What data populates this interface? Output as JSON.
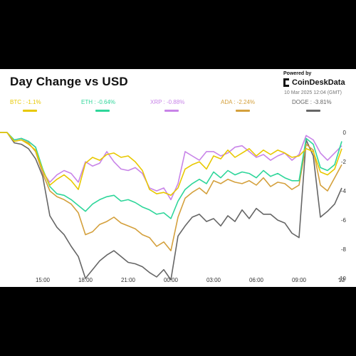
{
  "header": {
    "title": "Day Change vs USD",
    "powered_by": "Powered by",
    "brand": "CoinDeskData",
    "timestamp": "10 Mar 2025 12:04 (GMT)"
  },
  "legend": [
    {
      "label": "BTC : -1.1%",
      "color": "#e8c800"
    },
    {
      "label": "ETH : -0.64%",
      "color": "#2ed69a"
    },
    {
      "label": "XRP : -0.88%",
      "color": "#c884e8"
    },
    {
      "label": "ADA : -2.24%",
      "color": "#d4a03c"
    },
    {
      "label": "DOGE : -3.81%",
      "color": "#666666"
    }
  ],
  "chart_data": {
    "type": "line",
    "x": [
      "12:00",
      "12:30",
      "13:00",
      "13:30",
      "14:00",
      "14:30",
      "15:00",
      "15:30",
      "16:00",
      "16:30",
      "17:00",
      "17:30",
      "18:00",
      "18:30",
      "19:00",
      "19:30",
      "20:00",
      "20:30",
      "21:00",
      "21:30",
      "22:00",
      "22:30",
      "23:00",
      "23:30",
      "00:00",
      "00:30",
      "01:00",
      "01:30",
      "02:00",
      "02:30",
      "03:00",
      "03:30",
      "04:00",
      "04:30",
      "05:00",
      "05:30",
      "06:00",
      "06:30",
      "07:00",
      "07:30",
      "08:00",
      "08:30",
      "09:00",
      "09:30",
      "10:00",
      "10:30",
      "11:00",
      "11:30",
      "12:00"
    ],
    "x_ticks": [
      "15:00",
      "18:00",
      "21:00",
      "00:00",
      "03:00",
      "06:00",
      "09:00",
      "12"
    ],
    "y_ticks": [
      0,
      -2,
      -4,
      -6,
      -8,
      -10
    ],
    "ylim": [
      -10,
      0.5
    ],
    "grid": false,
    "series": [
      {
        "name": "BTC",
        "values": [
          0,
          0,
          -0.6,
          -0.5,
          -0.8,
          -1.2,
          -2.6,
          -3.6,
          -3.2,
          -2.9,
          -3.3,
          -3.9,
          -2.1,
          -1.7,
          -1.9,
          -1.5,
          -1.4,
          -1.7,
          -1.6,
          -2.0,
          -2.6,
          -3.9,
          -4.2,
          -4.1,
          -4.3,
          -3.8,
          -2.5,
          -2.2,
          -2.0,
          -2.5,
          -1.6,
          -1.8,
          -1.2,
          -1.7,
          -1.4,
          -1.1,
          -1.6,
          -1.2,
          -1.5,
          -1.2,
          -1.4,
          -1.7,
          -1.6,
          -1.1,
          -1.3,
          -2.7,
          -2.9,
          -2.5,
          -1.1
        ]
      },
      {
        "name": "ETH",
        "values": [
          0,
          0,
          -0.5,
          -0.4,
          -0.6,
          -1.0,
          -2.5,
          -3.7,
          -4.2,
          -4.3,
          -4.6,
          -5.0,
          -5.4,
          -4.9,
          -4.6,
          -4.4,
          -4.3,
          -4.7,
          -4.6,
          -4.8,
          -5.1,
          -5.3,
          -5.6,
          -5.5,
          -5.9,
          -4.7,
          -3.9,
          -3.5,
          -3.2,
          -3.5,
          -2.7,
          -3.1,
          -2.6,
          -2.9,
          -2.7,
          -2.8,
          -3.1,
          -2.6,
          -3.0,
          -2.8,
          -3.1,
          -3.3,
          -3.3,
          -0.4,
          -0.8,
          -2.4,
          -2.6,
          -2.2,
          -0.6
        ]
      },
      {
        "name": "XRP",
        "values": [
          0,
          0,
          -0.5,
          -0.4,
          -0.6,
          -1.0,
          -2.7,
          -3.4,
          -2.9,
          -2.6,
          -2.8,
          -3.4,
          -2.0,
          -2.3,
          -2.1,
          -1.3,
          -2.0,
          -2.5,
          -2.6,
          -2.4,
          -2.8,
          -3.8,
          -4.0,
          -3.8,
          -4.6,
          -3.5,
          -1.3,
          -1.6,
          -1.9,
          -1.3,
          -1.3,
          -1.6,
          -1.4,
          -1.0,
          -0.9,
          -1.3,
          -1.7,
          -1.5,
          -1.9,
          -1.6,
          -1.4,
          -1.9,
          -1.5,
          -0.2,
          -0.5,
          -1.4,
          -1.9,
          -1.4,
          -0.9
        ]
      },
      {
        "name": "ADA",
        "values": [
          0,
          0,
          -0.6,
          -0.5,
          -0.7,
          -1.3,
          -2.8,
          -4.0,
          -4.4,
          -4.6,
          -4.9,
          -5.5,
          -7.0,
          -6.8,
          -6.3,
          -6.1,
          -5.8,
          -6.2,
          -6.4,
          -6.6,
          -7.0,
          -7.2,
          -7.8,
          -7.5,
          -8.1,
          -5.8,
          -4.5,
          -4.1,
          -3.8,
          -4.2,
          -3.3,
          -3.5,
          -3.2,
          -3.4,
          -3.5,
          -3.3,
          -3.6,
          -3.1,
          -3.7,
          -3.4,
          -3.5,
          -3.9,
          -3.6,
          -0.8,
          -1.2,
          -3.6,
          -4.0,
          -3.1,
          -2.2
        ]
      },
      {
        "name": "DOGE",
        "values": [
          0,
          0,
          -0.7,
          -0.8,
          -1.1,
          -1.8,
          -3.0,
          -5.7,
          -6.5,
          -7.0,
          -7.8,
          -8.5,
          -10.0,
          -9.4,
          -8.8,
          -8.4,
          -8.1,
          -8.5,
          -8.9,
          -9.0,
          -9.2,
          -9.6,
          -9.9,
          -9.4,
          -10.1,
          -7.1,
          -6.4,
          -5.8,
          -5.6,
          -6.1,
          -5.9,
          -6.4,
          -5.7,
          -6.1,
          -5.3,
          -5.9,
          -5.2,
          -5.6,
          -5.6,
          -6.0,
          -6.2,
          -6.9,
          -7.2,
          -0.5,
          -1.6,
          -5.8,
          -5.4,
          -4.9,
          -3.8
        ]
      }
    ]
  }
}
